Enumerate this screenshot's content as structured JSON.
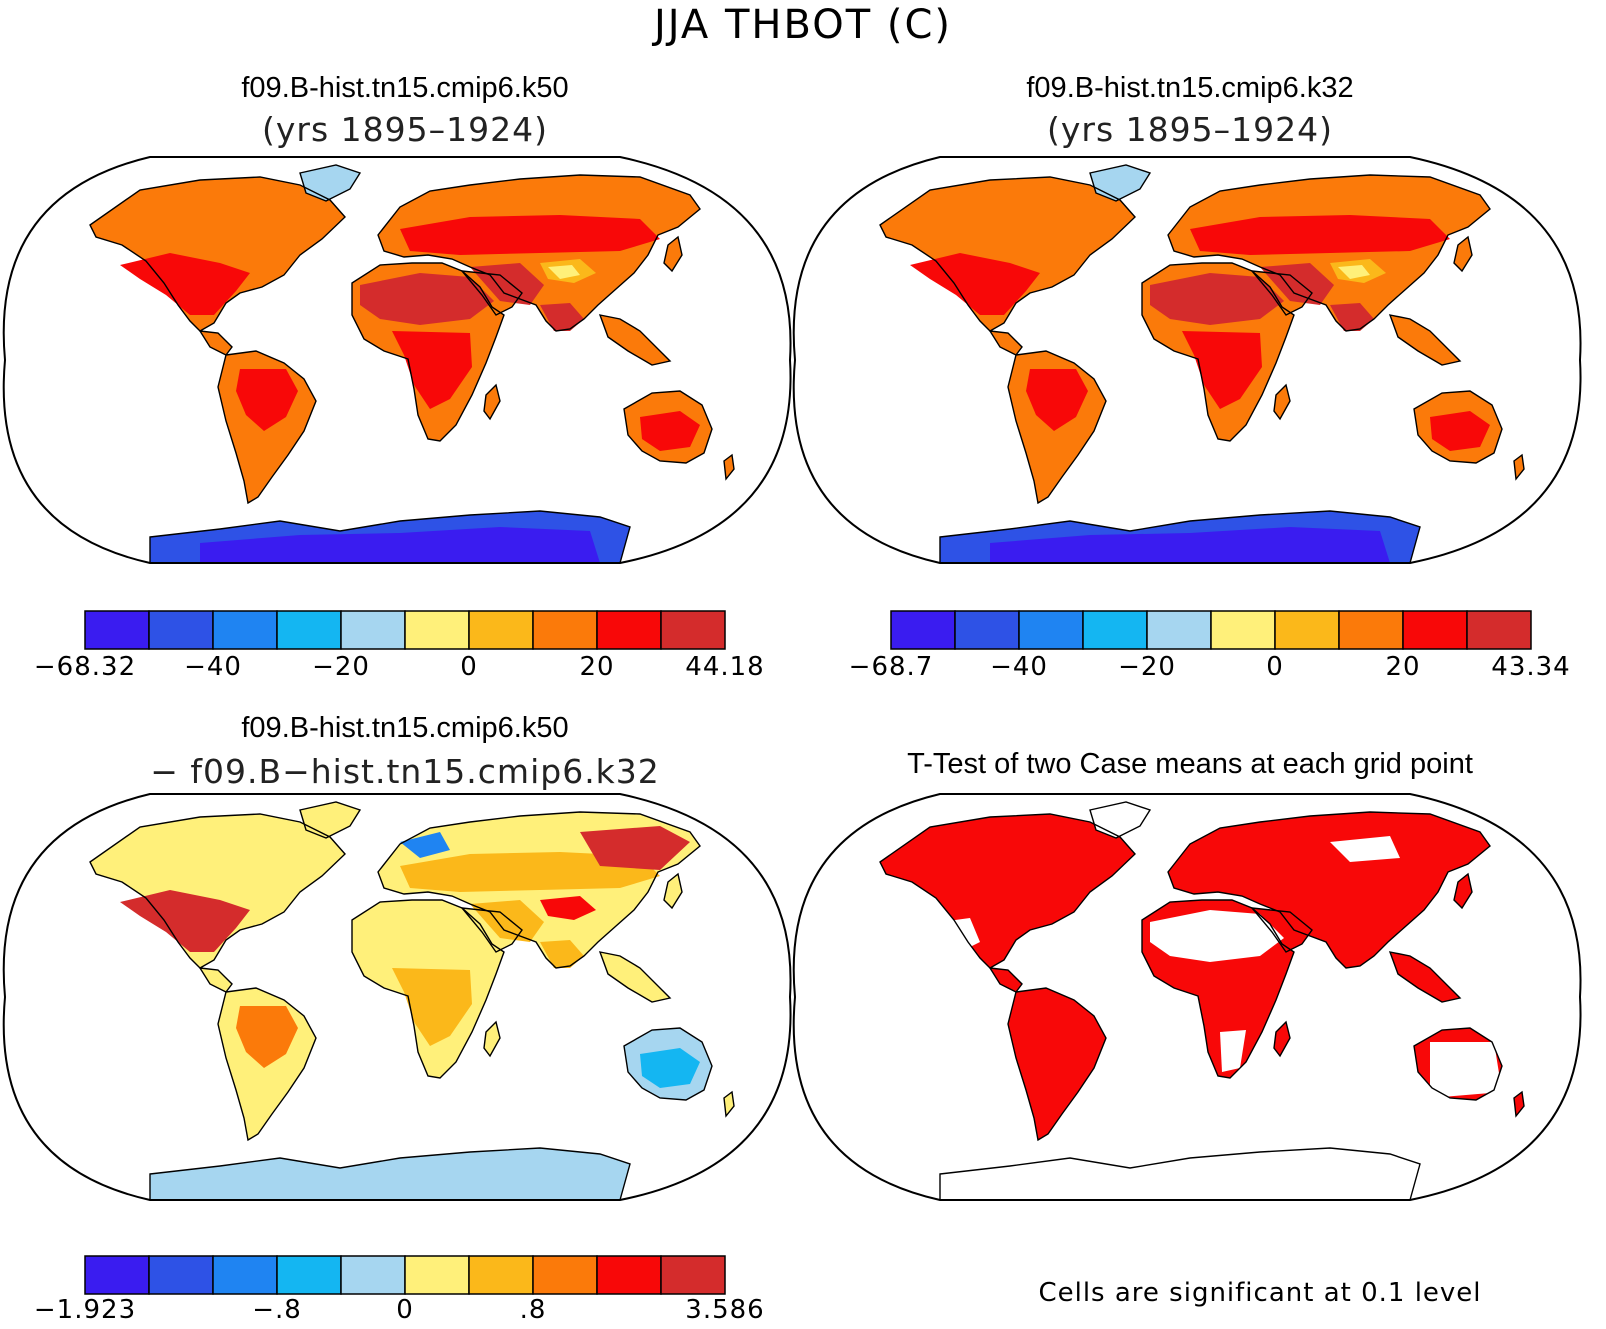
{
  "title": "JJA THBOT (C)",
  "colors": {
    "cool": [
      "#3a1cf0",
      "#2e52e6",
      "#1f84f2",
      "#14b6f2",
      "#a6d6f0"
    ],
    "warm": [
      "#fff07a",
      "#fbb81a",
      "#fb7a0a",
      "#f80808",
      "#d42c2c"
    ],
    "significant": "#f80808"
  },
  "panels": [
    {
      "id": "k50",
      "title": "f09.B-hist.tn15.cmip6.k50",
      "subtitle": "(yrs 1895–1924)",
      "colorbar": {
        "ticks": [
          "−68.32",
          "−40",
          "−20",
          "0",
          "20",
          "44.18"
        ],
        "tick_positions": [
          0,
          2,
          4,
          6,
          8,
          10
        ]
      }
    },
    {
      "id": "k32",
      "title": "f09.B-hist.tn15.cmip6.k32",
      "subtitle": "(yrs 1895–1924)",
      "colorbar": {
        "ticks": [
          "−68.7",
          "−40",
          "−20",
          "0",
          "20",
          "43.34"
        ],
        "tick_positions": [
          0,
          2,
          4,
          6,
          8,
          10
        ]
      }
    },
    {
      "id": "diff",
      "title": "f09.B-hist.tn15.cmip6.k50",
      "subtitle": "− f09.B−hist.tn15.cmip6.k32",
      "colorbar": {
        "ticks": [
          "−1.923",
          "−.8",
          "0",
          ".8",
          "3.586"
        ],
        "tick_positions": [
          0,
          3,
          5,
          7,
          10
        ]
      }
    },
    {
      "id": "ttest",
      "title": "T-Test of two Case means at each grid point",
      "note": "Cells are significant at 0.1 level"
    }
  ]
}
